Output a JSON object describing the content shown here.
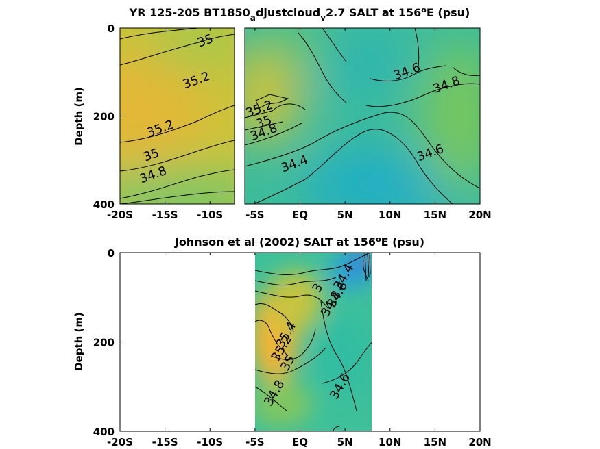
{
  "chart_data": [
    {
      "type": "contour",
      "title_parts": [
        "YR 125-205 BT1850",
        "a",
        "djustcloud",
        "v",
        "2.7 SALT at 156",
        "o",
        "E (psu)"
      ],
      "ylabel": "Depth (m)",
      "xlim": [
        -20,
        20
      ],
      "ylim": [
        400,
        0
      ],
      "y_reversed": true,
      "x_ticks": [
        -20,
        -15,
        -10,
        -5,
        0,
        5,
        10,
        15,
        20
      ],
      "x_tick_labels": [
        "-20S",
        "-15S",
        "-10S",
        "-5S",
        "EQ",
        "5N",
        "10N",
        "15N",
        "20N"
      ],
      "y_ticks": [
        0,
        200,
        400
      ],
      "y_tick_labels": [
        "0",
        "200",
        "400"
      ],
      "data_extent": [
        -20,
        20
      ],
      "gap": [
        -7.5,
        -6.5
      ],
      "contour_levels": [
        34.4,
        34.6,
        34.8,
        35,
        35.2
      ],
      "contour_labels": [
        {
          "text": "35",
          "x": -10.5,
          "y": 30
        },
        {
          "text": "35.2",
          "x": -11.5,
          "y": 120
        },
        {
          "text": "35.2",
          "x": -15.5,
          "y": 230
        },
        {
          "text": "35",
          "x": -16.5,
          "y": 290
        },
        {
          "text": "34.8",
          "x": -16.3,
          "y": 335
        },
        {
          "text": "35.2",
          "x": -4.5,
          "y": 185
        },
        {
          "text": "35",
          "x": -4.0,
          "y": 215
        },
        {
          "text": "34.8",
          "x": -4.0,
          "y": 238
        },
        {
          "text": "34.4",
          "x": -0.6,
          "y": 310
        },
        {
          "text": "34.6",
          "x": 11.9,
          "y": 100
        },
        {
          "text": "34.8",
          "x": 16.3,
          "y": 130
        },
        {
          "text": "34.6",
          "x": 14.5,
          "y": 285
        }
      ]
    },
    {
      "type": "contour",
      "title_parts": [
        "Johnson et al (2002) SALT at 156",
        "o",
        "E (psu)"
      ],
      "ylabel": "Depth (m)",
      "xlim": [
        -20,
        20
      ],
      "ylim": [
        400,
        0
      ],
      "y_reversed": true,
      "x_ticks": [
        -20,
        -15,
        -10,
        -5,
        0,
        5,
        10,
        15,
        20
      ],
      "x_tick_labels": [
        "-20S",
        "-15S",
        "-10S",
        "-5S",
        "EQ",
        "5N",
        "10N",
        "15N",
        "20N"
      ],
      "y_ticks": [
        0,
        200,
        400
      ],
      "y_tick_labels": [
        "0",
        "200",
        "400"
      ],
      "data_extent": [
        -5,
        8
      ],
      "contour_levels": [
        34.4,
        34.6,
        34.8,
        35,
        35.2,
        35.4
      ],
      "contour_labels": [
        {
          "text": "34.4",
          "x": 4.9,
          "y": 55
        },
        {
          "text": "34.6",
          "x": 4.2,
          "y": 95
        },
        {
          "text": "34.8",
          "x": 3.5,
          "y": 115
        },
        {
          "text": "3",
          "x": 2.0,
          "y": 80
        },
        {
          "text": "35.4",
          "x": -1.5,
          "y": 185
        },
        {
          "text": "35.2",
          "x": -2.0,
          "y": 215
        },
        {
          "text": "35",
          "x": -1.3,
          "y": 248
        },
        {
          "text": "34.8",
          "x": -2.8,
          "y": 315
        },
        {
          "text": "34.6",
          "x": 4.5,
          "y": 300
        }
      ]
    }
  ]
}
